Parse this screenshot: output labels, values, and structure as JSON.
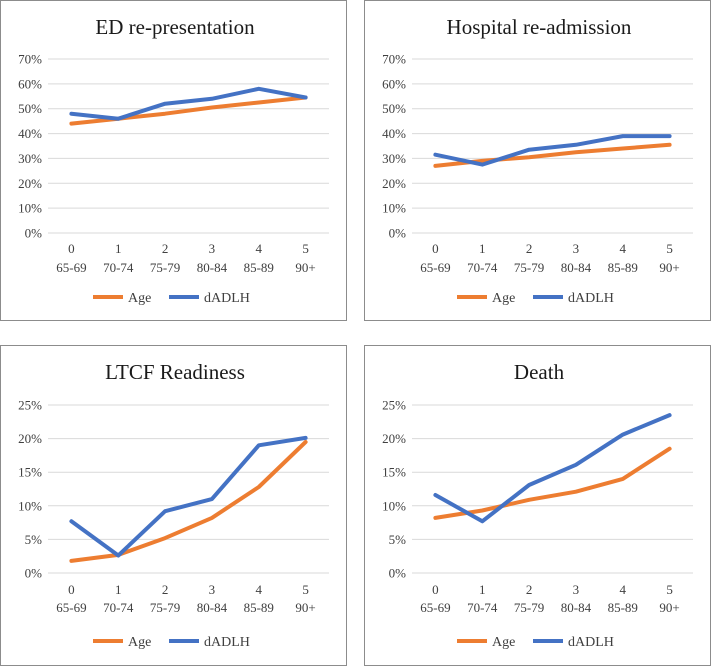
{
  "colors": {
    "age": "#ED7D31",
    "dadlh": "#4472C4"
  },
  "legend": [
    "Age",
    "dADLH"
  ],
  "chart_data": [
    {
      "type": "line",
      "title": "ED re-presentation",
      "categories": [
        [
          "0",
          "65-69"
        ],
        [
          "1",
          "70-74"
        ],
        [
          "2",
          "75-79"
        ],
        [
          "3",
          "80-84"
        ],
        [
          "4",
          "85-89"
        ],
        [
          "5",
          "90+"
        ]
      ],
      "ylim": [
        0,
        70
      ],
      "yticks": [
        "0%",
        "10%",
        "20%",
        "30%",
        "40%",
        "50%",
        "60%",
        "70%"
      ],
      "series": [
        {
          "name": "Age",
          "values": [
            44,
            46,
            48,
            50.5,
            52.5,
            54.5
          ]
        },
        {
          "name": "dADLH",
          "values": [
            48,
            46,
            52,
            54,
            58,
            54.5
          ]
        }
      ]
    },
    {
      "type": "line",
      "title": "Hospital re-admission",
      "categories": [
        [
          "0",
          "65-69"
        ],
        [
          "1",
          "70-74"
        ],
        [
          "2",
          "75-79"
        ],
        [
          "3",
          "80-84"
        ],
        [
          "4",
          "85-89"
        ],
        [
          "5",
          "90+"
        ]
      ],
      "ylim": [
        0,
        70
      ],
      "yticks": [
        "0%",
        "10%",
        "20%",
        "30%",
        "40%",
        "50%",
        "60%",
        "70%"
      ],
      "series": [
        {
          "name": "Age",
          "values": [
            27,
            29,
            30.5,
            32.5,
            34,
            35.5
          ]
        },
        {
          "name": "dADLH",
          "values": [
            31.5,
            27.5,
            33.5,
            35.5,
            39,
            39
          ]
        }
      ]
    },
    {
      "type": "line",
      "title": "LTCF Readiness",
      "categories": [
        [
          "0",
          "65-69"
        ],
        [
          "1",
          "70-74"
        ],
        [
          "2",
          "75-79"
        ],
        [
          "3",
          "80-84"
        ],
        [
          "4",
          "85-89"
        ],
        [
          "5",
          "90+"
        ]
      ],
      "ylim": [
        0,
        25
      ],
      "yticks": [
        "0%",
        "5%",
        "10%",
        "15%",
        "20%",
        "25%"
      ],
      "series": [
        {
          "name": "Age",
          "values": [
            1.8,
            2.7,
            5.2,
            8.2,
            12.8,
            19.5
          ]
        },
        {
          "name": "dADLH",
          "values": [
            7.7,
            2.6,
            9.2,
            11.0,
            19.0,
            20.1
          ]
        }
      ]
    },
    {
      "type": "line",
      "title": "Death",
      "categories": [
        [
          "0",
          "65-69"
        ],
        [
          "1",
          "70-74"
        ],
        [
          "2",
          "75-79"
        ],
        [
          "3",
          "80-84"
        ],
        [
          "4",
          "85-89"
        ],
        [
          "5",
          "90+"
        ]
      ],
      "ylim": [
        0,
        25
      ],
      "yticks": [
        "0%",
        "5%",
        "10%",
        "15%",
        "20%",
        "25%"
      ],
      "series": [
        {
          "name": "Age",
          "values": [
            8.2,
            9.3,
            10.9,
            12.1,
            14.0,
            18.5
          ]
        },
        {
          "name": "dADLH",
          "values": [
            11.6,
            7.7,
            13.1,
            16.1,
            20.6,
            23.5
          ]
        }
      ]
    }
  ]
}
